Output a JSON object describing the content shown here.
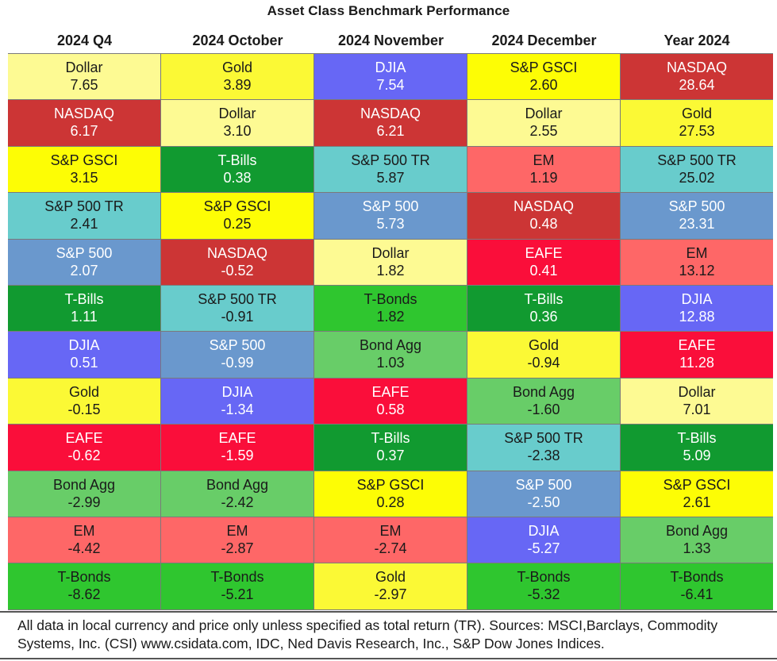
{
  "chart_data": {
    "type": "table",
    "title": "Asset Class Benchmark Performance",
    "columns": [
      {
        "header": "2024 Q4",
        "cells": [
          {
            "name": "Dollar",
            "value": "7.65"
          },
          {
            "name": "NASDAQ",
            "value": "6.17"
          },
          {
            "name": "S&P GSCI",
            "value": "3.15"
          },
          {
            "name": "S&P 500 TR",
            "value": "2.41"
          },
          {
            "name": "S&P 500",
            "value": "2.07"
          },
          {
            "name": "T-Bills",
            "value": "1.11"
          },
          {
            "name": "DJIA",
            "value": "0.51"
          },
          {
            "name": "Gold",
            "value": "-0.15"
          },
          {
            "name": "EAFE",
            "value": "-0.62"
          },
          {
            "name": "Bond Agg",
            "value": "-2.99"
          },
          {
            "name": "EM",
            "value": "-4.42"
          },
          {
            "name": "T-Bonds",
            "value": "-8.62"
          }
        ]
      },
      {
        "header": "2024 October",
        "cells": [
          {
            "name": "Gold",
            "value": "3.89"
          },
          {
            "name": "Dollar",
            "value": "3.10"
          },
          {
            "name": "T-Bills",
            "value": "0.38"
          },
          {
            "name": "S&P GSCI",
            "value": "0.25"
          },
          {
            "name": "NASDAQ",
            "value": "-0.52"
          },
          {
            "name": "S&P 500 TR",
            "value": "-0.91"
          },
          {
            "name": "S&P 500",
            "value": "-0.99"
          },
          {
            "name": "DJIA",
            "value": "-1.34"
          },
          {
            "name": "EAFE",
            "value": "-1.59"
          },
          {
            "name": "Bond Agg",
            "value": "-2.42"
          },
          {
            "name": "EM",
            "value": "-2.87"
          },
          {
            "name": "T-Bonds",
            "value": "-5.21"
          }
        ]
      },
      {
        "header": "2024 November",
        "cells": [
          {
            "name": "DJIA",
            "value": "7.54"
          },
          {
            "name": "NASDAQ",
            "value": "6.21"
          },
          {
            "name": "S&P 500 TR",
            "value": "5.87"
          },
          {
            "name": "S&P 500",
            "value": "5.73"
          },
          {
            "name": "Dollar",
            "value": "1.82"
          },
          {
            "name": "T-Bonds",
            "value": "1.82"
          },
          {
            "name": "Bond Agg",
            "value": "1.03"
          },
          {
            "name": "EAFE",
            "value": "0.58"
          },
          {
            "name": "T-Bills",
            "value": "0.37"
          },
          {
            "name": "S&P GSCI",
            "value": "0.28"
          },
          {
            "name": "EM",
            "value": "-2.74"
          },
          {
            "name": "Gold",
            "value": "-2.97"
          }
        ]
      },
      {
        "header": "2024 December",
        "cells": [
          {
            "name": "S&P GSCI",
            "value": "2.60"
          },
          {
            "name": "Dollar",
            "value": "2.55"
          },
          {
            "name": "EM",
            "value": "1.19"
          },
          {
            "name": "NASDAQ",
            "value": "0.48"
          },
          {
            "name": "EAFE",
            "value": "0.41"
          },
          {
            "name": "T-Bills",
            "value": "0.36"
          },
          {
            "name": "Gold",
            "value": "-0.94"
          },
          {
            "name": "Bond Agg",
            "value": "-1.60"
          },
          {
            "name": "S&P 500 TR",
            "value": "-2.38"
          },
          {
            "name": "S&P 500",
            "value": "-2.50"
          },
          {
            "name": "DJIA",
            "value": "-5.27"
          },
          {
            "name": "T-Bonds",
            "value": "-5.32"
          }
        ]
      },
      {
        "header": "Year 2024",
        "cells": [
          {
            "name": "NASDAQ",
            "value": "28.64"
          },
          {
            "name": "Gold",
            "value": "27.53"
          },
          {
            "name": "S&P 500 TR",
            "value": "25.02"
          },
          {
            "name": "S&P 500",
            "value": "23.31"
          },
          {
            "name": "EM",
            "value": "13.12"
          },
          {
            "name": "DJIA",
            "value": "12.88"
          },
          {
            "name": "EAFE",
            "value": "11.28"
          },
          {
            "name": "Dollar",
            "value": "7.01"
          },
          {
            "name": "T-Bills",
            "value": "5.09"
          },
          {
            "name": "S&P GSCI",
            "value": "2.61"
          },
          {
            "name": "Bond Agg",
            "value": "1.33"
          },
          {
            "name": "T-Bonds",
            "value": "-6.41"
          }
        ]
      }
    ],
    "asset_colors": {
      "Dollar": {
        "bg": "#fdfa93",
        "fg": "#1a1a1a"
      },
      "Gold": {
        "bg": "#fbf935",
        "fg": "#1a1a1a"
      },
      "DJIA": {
        "bg": "#6767f5",
        "fg": "#ffffff"
      },
      "S&P GSCI": {
        "bg": "#fdfd05",
        "fg": "#1a1a1a"
      },
      "NASDAQ": {
        "bg": "#cc3535",
        "fg": "#ffffff"
      },
      "T-Bills": {
        "bg": "#119a30",
        "fg": "#ffffff"
      },
      "S&P 500 TR": {
        "bg": "#68cccc",
        "fg": "#1a1a1a"
      },
      "EM": {
        "bg": "#fe6767",
        "fg": "#1a1a1a"
      },
      "S&P 500": {
        "bg": "#6a98cd",
        "fg": "#ffffff"
      },
      "EAFE": {
        "bg": "#fa0e3a",
        "fg": "#ffffff"
      },
      "T-Bonds": {
        "bg": "#2fc62f",
        "fg": "#1a1a1a"
      },
      "Bond Agg": {
        "bg": "#68cd68",
        "fg": "#1a1a1a"
      }
    },
    "grid_line_color": "#7a7a7a"
  },
  "footer": "All data in local currency and price only unless specified as total return (TR). Sources: MSCI,Barclays, Commodity Systems, Inc. (CSI) www.csidata.com, IDC, Ned Davis Research, Inc., S&P Dow Jones Indices."
}
